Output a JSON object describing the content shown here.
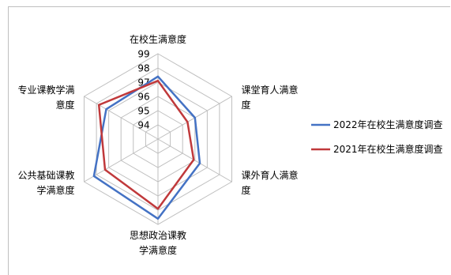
{
  "chart_data": {
    "type": "radar",
    "axes": [
      "在校生满意度",
      "课堂育人满意度",
      "课外育人满意度",
      "思想政治课教学满意度",
      "公共基础课教学满意度",
      "专业课教学满意度"
    ],
    "axis_label_lines": [
      [
        "在校生满意度"
      ],
      [
        "课堂育人满意",
        "度"
      ],
      [
        "课外育人满意",
        "度"
      ],
      [
        "思想政治课教",
        "学满意度"
      ],
      [
        "公共基础课教",
        "学满意度"
      ],
      [
        "专业课教学满",
        "意度"
      ]
    ],
    "rlim": [
      93,
      99
    ],
    "ticks": [
      94,
      95,
      96,
      97,
      98,
      99
    ],
    "series": [
      {
        "name": "2022年在校生满意度调查",
        "color": "#4472c4",
        "values": [
          97.4,
          96.0,
          96.4,
          98.6,
          98.2,
          97.2
        ]
      },
      {
        "name": "2021年在校生满意度调查",
        "color": "#c0393b",
        "values": [
          97.1,
          95.4,
          95.9,
          97.9,
          97.3,
          97.8
        ]
      }
    ],
    "grid": true,
    "legend": "right"
  }
}
